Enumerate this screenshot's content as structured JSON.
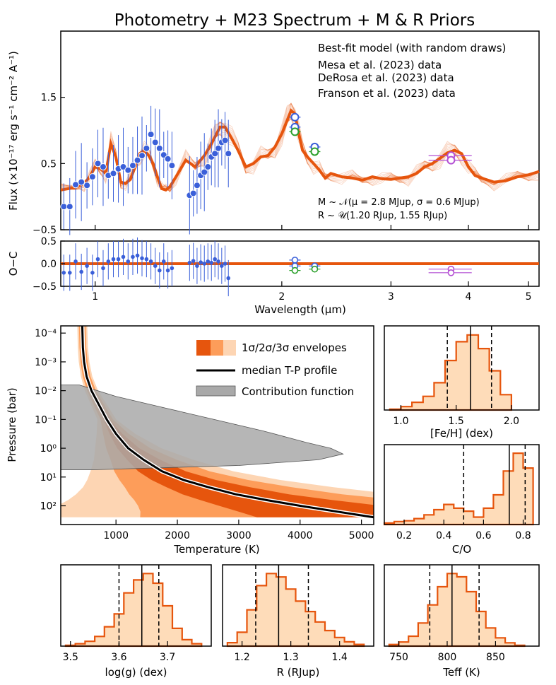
{
  "figure_title": "Photometry + M23 Spectrum + M & R Priors",
  "colors": {
    "model": "#e6550d",
    "model_light": "#fdd0a2",
    "mesa": "#3a5fd9",
    "derosa": "#2ca02c",
    "franson": "#b34fd3",
    "sigma1": "#e6550d",
    "sigma2": "#fd9d5a",
    "sigma3": "#fdd5b3",
    "contribution": "#a9a9a9"
  },
  "chart_data": [
    {
      "id": "spectrum",
      "type": "line",
      "xscale": "log",
      "ylabel": "Flux (×10⁻¹⁷ erg s⁻¹ cm⁻² A⁻¹)",
      "ylim": [
        -0.5,
        2.5
      ],
      "xlim": [
        0.88,
        5.2
      ],
      "yticks": [
        "1.5",
        "0.5",
        "−0.5"
      ],
      "legend": [
        {
          "label": "Best-fit model (with random draws)",
          "color_key": "model"
        },
        {
          "label": "Mesa et al. (2023) data",
          "color_key": "mesa"
        },
        {
          "label": "DeRosa et al. (2023) data",
          "color_key": "derosa"
        },
        {
          "label": "Franson et al. (2023) data",
          "color_key": "franson"
        }
      ],
      "prior_text_1": "M ~ 𝒩(μ = 2.8 MJup, σ = 0.6 MJup)",
      "prior_text_2": "R ~ 𝒰(1.20 RJup, 1.55 RJup)",
      "model_x": [
        0.88,
        0.93,
        0.96,
        0.98,
        1.0,
        1.02,
        1.04,
        1.06,
        1.08,
        1.1,
        1.12,
        1.14,
        1.16,
        1.18,
        1.2,
        1.22,
        1.24,
        1.26,
        1.28,
        1.3,
        1.32,
        1.35,
        1.4,
        1.45,
        1.5,
        1.53,
        1.56,
        1.59,
        1.62,
        1.66,
        1.7,
        1.75,
        1.8,
        1.85,
        1.9,
        1.95,
        2.0,
        2.04,
        2.07,
        2.1,
        2.13,
        2.16,
        2.2,
        2.25,
        2.3,
        2.35,
        2.4,
        2.5,
        2.6,
        2.7,
        2.8,
        2.9,
        3.0,
        3.1,
        3.2,
        3.3,
        3.4,
        3.5,
        3.6,
        3.7,
        3.8,
        3.9,
        4.0,
        4.1,
        4.2,
        4.4,
        4.6,
        4.8,
        5.0,
        5.2
      ],
      "model_y": [
        0.1,
        0.14,
        0.2,
        0.3,
        0.45,
        0.42,
        0.35,
        0.8,
        0.6,
        0.22,
        0.2,
        0.26,
        0.45,
        0.65,
        0.7,
        0.62,
        0.5,
        0.3,
        0.12,
        0.1,
        0.15,
        0.3,
        0.55,
        0.45,
        0.62,
        0.75,
        0.9,
        1.05,
        1.05,
        0.88,
        0.7,
        0.45,
        0.5,
        0.6,
        0.62,
        0.75,
        0.95,
        1.15,
        1.3,
        1.25,
        0.95,
        0.7,
        0.6,
        0.5,
        0.4,
        0.28,
        0.35,
        0.3,
        0.28,
        0.25,
        0.3,
        0.27,
        0.26,
        0.28,
        0.3,
        0.35,
        0.45,
        0.5,
        0.58,
        0.66,
        0.7,
        0.65,
        0.45,
        0.32,
        0.28,
        0.22,
        0.24,
        0.3,
        0.33,
        0.38
      ],
      "mesa_x": [
        0.89,
        0.91,
        0.93,
        0.95,
        0.97,
        0.99,
        1.01,
        1.03,
        1.05,
        1.07,
        1.09,
        1.11,
        1.13,
        1.15,
        1.17,
        1.19,
        1.21,
        1.23,
        1.25,
        1.27,
        1.29,
        1.31,
        1.33,
        1.42,
        1.44,
        1.46,
        1.48,
        1.5,
        1.52,
        1.54,
        1.56,
        1.58,
        1.6,
        1.62,
        1.64,
        2.1,
        2.1,
        2.26
      ],
      "mesa_y": [
        -0.15,
        -0.15,
        0.18,
        0.22,
        0.17,
        0.3,
        0.5,
        0.45,
        0.32,
        0.35,
        0.42,
        0.45,
        0.4,
        0.47,
        0.55,
        0.62,
        0.73,
        0.94,
        0.82,
        0.73,
        0.63,
        0.57,
        0.47,
        0.02,
        0.05,
        0.17,
        0.32,
        0.37,
        0.45,
        0.6,
        0.65,
        0.73,
        0.82,
        0.85,
        0.65,
        1.2,
        1.05,
        0.75
      ],
      "derosa_x": [
        2.1,
        2.26
      ],
      "derosa_y": [
        0.98,
        0.68
      ],
      "franson_x": [
        3.75,
        3.75
      ],
      "franson_y": [
        0.62,
        0.55
      ]
    },
    {
      "id": "residuals",
      "type": "scatter",
      "ylabel": "O−C",
      "xlabel": "Wavelength (μm)",
      "ylim": [
        -0.5,
        0.5
      ],
      "yticks": [
        "0.5",
        "0.0",
        "−0.5"
      ],
      "xticks": [
        "1",
        "2",
        "3",
        "4",
        "5"
      ],
      "xtick_values": [
        1,
        2,
        3,
        4,
        5
      ],
      "mesa_y": [
        -0.2,
        -0.2,
        0.05,
        -0.18,
        -0.05,
        -0.2,
        0.1,
        -0.1,
        0.05,
        0.1,
        0.1,
        0.15,
        0.05,
        0.15,
        0.18,
        0.12,
        0.1,
        0.05,
        -0.05,
        -0.15,
        0.05,
        -0.15,
        -0.1,
        0.02,
        0.06,
        -0.05,
        0.03,
        0.0,
        0.05,
        0.02,
        0.1,
        0.05,
        -0.05,
        0.0,
        -0.32,
        0.08,
        -0.05,
        -0.05
      ],
      "derosa_y": [
        -0.15,
        -0.12
      ],
      "franson_y": [
        -0.12,
        -0.2
      ]
    },
    {
      "id": "tp_profile",
      "type": "line",
      "xlabel": "Temperature (K)",
      "ylabel": "Pressure (bar)",
      "xlim": [
        100,
        5200
      ],
      "ylim_log": [
        -4.25,
        2.65
      ],
      "xticks": [
        "1000",
        "2000",
        "3000",
        "4000",
        "5000"
      ],
      "xtick_values": [
        1000,
        2000,
        3000,
        4000,
        5000
      ],
      "yticks": [
        "10⁻⁴",
        "10⁻³",
        "10⁻²",
        "10⁻¹",
        "10⁰",
        "10¹",
        "10²"
      ],
      "ytick_values": [
        -4,
        -3,
        -2,
        -1,
        0,
        1,
        2
      ],
      "legend": [
        {
          "label": "1σ/2σ/3σ envelopes",
          "color_key": "sigma1"
        },
        {
          "label": "median T-P profile",
          "color_key": "median"
        },
        {
          "label": "Contribution function",
          "color_key": "contribution"
        }
      ],
      "median_T": [
        450,
        460,
        480,
        520,
        600,
        700,
        850,
        1000,
        1200,
        1450,
        1750,
        2100,
        2500,
        2950,
        3450,
        4000,
        4600,
        5200
      ],
      "median_logP": [
        -4.3,
        -3.5,
        -3.0,
        -2.5,
        -2.0,
        -1.6,
        -1.0,
        -0.5,
        0.0,
        0.4,
        0.8,
        1.1,
        1.35,
        1.6,
        1.8,
        2.0,
        2.2,
        2.4
      ],
      "contribution_logP": [
        -2.2,
        -1.8,
        -1.4,
        -1.0,
        -0.6,
        -0.2,
        0.0,
        0.2,
        0.4,
        0.6,
        0.75
      ],
      "contribution_T": [
        400,
        1000,
        1800,
        2600,
        3400,
        4100,
        4500,
        4700,
        4300,
        3000,
        600
      ]
    },
    {
      "id": "hist_feh",
      "type": "bar",
      "xlabel": "[Fe/H] (dex)",
      "xlim": [
        0.85,
        2.25
      ],
      "xticks": [
        "1.0",
        "1.5",
        "2.0"
      ],
      "xtick_values": [
        1.0,
        1.5,
        2.0
      ],
      "bin_edges": [
        0.9,
        1.0,
        1.1,
        1.2,
        1.3,
        1.4,
        1.5,
        1.6,
        1.7,
        1.8,
        1.9,
        2.0
      ],
      "counts": [
        1,
        4,
        9,
        16,
        32,
        58,
        80,
        88,
        72,
        46,
        18
      ],
      "median": 1.63,
      "lower": 1.42,
      "upper": 1.82
    },
    {
      "id": "hist_co",
      "type": "bar",
      "xlabel": "C/O",
      "xlim": [
        0.1,
        0.88
      ],
      "xticks": [
        "0.2",
        "0.4",
        "0.6",
        "0.8"
      ],
      "xtick_values": [
        0.2,
        0.4,
        0.6,
        0.8
      ],
      "bin_edges": [
        0.1,
        0.15,
        0.2,
        0.25,
        0.3,
        0.35,
        0.4,
        0.45,
        0.5,
        0.55,
        0.6,
        0.65,
        0.7,
        0.75,
        0.8,
        0.85
      ],
      "counts": [
        2,
        4,
        5,
        8,
        13,
        20,
        27,
        22,
        18,
        10,
        22,
        40,
        72,
        96,
        76
      ],
      "median": 0.73,
      "lower": 0.5,
      "upper": 0.81
    },
    {
      "id": "hist_logg",
      "type": "bar",
      "xlabel": "log(g) (dex)",
      "xlim": [
        3.48,
        3.79
      ],
      "xticks": [
        "3.5",
        "3.6",
        "3.7"
      ],
      "xtick_values": [
        3.5,
        3.6,
        3.7
      ],
      "bin_edges": [
        3.49,
        3.51,
        3.53,
        3.55,
        3.57,
        3.59,
        3.61,
        3.63,
        3.65,
        3.67,
        3.69,
        3.71,
        3.73,
        3.75,
        3.77
      ],
      "counts": [
        1,
        3,
        6,
        12,
        24,
        40,
        66,
        82,
        90,
        78,
        50,
        22,
        8,
        3
      ],
      "median": 3.647,
      "lower": 3.6,
      "upper": 3.682
    },
    {
      "id": "hist_radius",
      "type": "bar",
      "xlabel": "R (RJup)",
      "xlim": [
        1.16,
        1.47
      ],
      "xticks": [
        "1.2",
        "1.3",
        "1.4"
      ],
      "xtick_values": [
        1.2,
        1.3,
        1.4
      ],
      "bin_edges": [
        1.17,
        1.19,
        1.21,
        1.23,
        1.25,
        1.27,
        1.29,
        1.31,
        1.33,
        1.35,
        1.37,
        1.39,
        1.41,
        1.43,
        1.45
      ],
      "counts": [
        4,
        16,
        42,
        70,
        84,
        80,
        66,
        52,
        40,
        28,
        18,
        10,
        5,
        2
      ],
      "median": 1.275,
      "lower": 1.228,
      "upper": 1.336
    },
    {
      "id": "hist_teff",
      "type": "bar",
      "xlabel": "Teff (K)",
      "xlim": [
        735,
        895
      ],
      "xticks": [
        "750",
        "800",
        "850"
      ],
      "xtick_values": [
        750,
        800,
        850
      ],
      "bin_edges": [
        740,
        750,
        760,
        770,
        780,
        790,
        800,
        810,
        820,
        830,
        840,
        850,
        860,
        870,
        880
      ],
      "counts": [
        2,
        5,
        12,
        28,
        50,
        72,
        88,
        84,
        66,
        42,
        22,
        10,
        4,
        1
      ],
      "median": 805,
      "lower": 782,
      "upper": 833
    }
  ]
}
